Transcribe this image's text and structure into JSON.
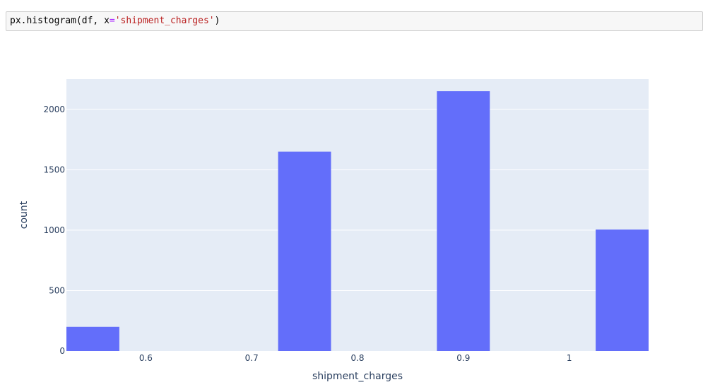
{
  "code_cell": {
    "func": "px.histogram",
    "open": "(",
    "arg1": "df",
    "sep": ", ",
    "kw": "x",
    "eq": "=",
    "string": "'shipment_charges'",
    "close": ")"
  },
  "colors": {
    "plot_bg": "#e5ecf6",
    "bar": "#636efa",
    "grid": "#ffffff",
    "tick_text": "#2a3f5f"
  },
  "chart_data": {
    "type": "bar",
    "title": "",
    "xlabel": "shipment_charges",
    "ylabel": "count",
    "x_range": [
      0.525,
      1.075
    ],
    "y_range": [
      0,
      2250
    ],
    "x_ticks": [
      0.6,
      0.7,
      0.8,
      0.9,
      1.0
    ],
    "x_tick_labels": [
      "0.6",
      "0.7",
      "0.8",
      "0.9",
      "1"
    ],
    "y_ticks": [
      0,
      500,
      1000,
      1500,
      2000
    ],
    "y_tick_labels": [
      "0",
      "500",
      "1000",
      "1500",
      "2000"
    ],
    "bin_width": 0.05,
    "bins": [
      {
        "x0": 0.525,
        "x1": 0.575,
        "count": 200
      },
      {
        "x0": 0.725,
        "x1": 0.775,
        "count": 1650
      },
      {
        "x0": 0.875,
        "x1": 0.925,
        "count": 2150
      },
      {
        "x0": 1.025,
        "x1": 1.075,
        "count": 1005
      }
    ],
    "grid": true,
    "legend": "none"
  }
}
